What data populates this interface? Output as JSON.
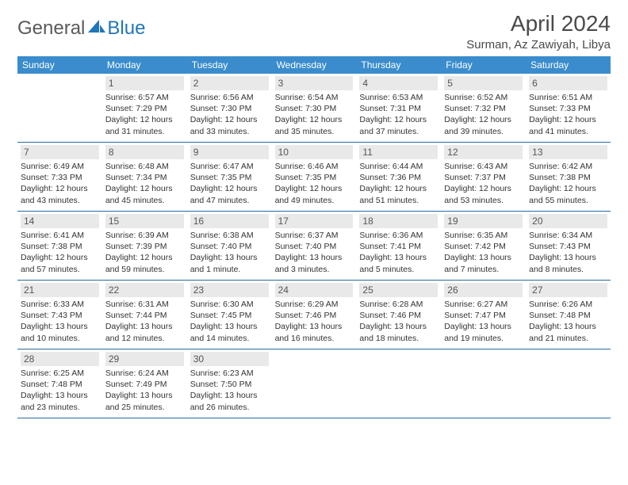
{
  "logo": {
    "text_general": "General",
    "text_blue": "Blue"
  },
  "title": "April 2024",
  "location": "Surman, Az Zawiyah, Libya",
  "colors": {
    "header_bg": "#3a8ccc",
    "daynum_bg": "#e9e9e9",
    "week_border": "#2a6aa0",
    "logo_blue": "#2176b8",
    "text": "#333333"
  },
  "day_names": [
    "Sunday",
    "Monday",
    "Tuesday",
    "Wednesday",
    "Thursday",
    "Friday",
    "Saturday"
  ],
  "weeks": [
    [
      {
        "day": "",
        "sunrise": "",
        "sunset": "",
        "daylight": ""
      },
      {
        "day": "1",
        "sunrise": "Sunrise: 6:57 AM",
        "sunset": "Sunset: 7:29 PM",
        "daylight": "Daylight: 12 hours and 31 minutes."
      },
      {
        "day": "2",
        "sunrise": "Sunrise: 6:56 AM",
        "sunset": "Sunset: 7:30 PM",
        "daylight": "Daylight: 12 hours and 33 minutes."
      },
      {
        "day": "3",
        "sunrise": "Sunrise: 6:54 AM",
        "sunset": "Sunset: 7:30 PM",
        "daylight": "Daylight: 12 hours and 35 minutes."
      },
      {
        "day": "4",
        "sunrise": "Sunrise: 6:53 AM",
        "sunset": "Sunset: 7:31 PM",
        "daylight": "Daylight: 12 hours and 37 minutes."
      },
      {
        "day": "5",
        "sunrise": "Sunrise: 6:52 AM",
        "sunset": "Sunset: 7:32 PM",
        "daylight": "Daylight: 12 hours and 39 minutes."
      },
      {
        "day": "6",
        "sunrise": "Sunrise: 6:51 AM",
        "sunset": "Sunset: 7:33 PM",
        "daylight": "Daylight: 12 hours and 41 minutes."
      }
    ],
    [
      {
        "day": "7",
        "sunrise": "Sunrise: 6:49 AM",
        "sunset": "Sunset: 7:33 PM",
        "daylight": "Daylight: 12 hours and 43 minutes."
      },
      {
        "day": "8",
        "sunrise": "Sunrise: 6:48 AM",
        "sunset": "Sunset: 7:34 PM",
        "daylight": "Daylight: 12 hours and 45 minutes."
      },
      {
        "day": "9",
        "sunrise": "Sunrise: 6:47 AM",
        "sunset": "Sunset: 7:35 PM",
        "daylight": "Daylight: 12 hours and 47 minutes."
      },
      {
        "day": "10",
        "sunrise": "Sunrise: 6:46 AM",
        "sunset": "Sunset: 7:35 PM",
        "daylight": "Daylight: 12 hours and 49 minutes."
      },
      {
        "day": "11",
        "sunrise": "Sunrise: 6:44 AM",
        "sunset": "Sunset: 7:36 PM",
        "daylight": "Daylight: 12 hours and 51 minutes."
      },
      {
        "day": "12",
        "sunrise": "Sunrise: 6:43 AM",
        "sunset": "Sunset: 7:37 PM",
        "daylight": "Daylight: 12 hours and 53 minutes."
      },
      {
        "day": "13",
        "sunrise": "Sunrise: 6:42 AM",
        "sunset": "Sunset: 7:38 PM",
        "daylight": "Daylight: 12 hours and 55 minutes."
      }
    ],
    [
      {
        "day": "14",
        "sunrise": "Sunrise: 6:41 AM",
        "sunset": "Sunset: 7:38 PM",
        "daylight": "Daylight: 12 hours and 57 minutes."
      },
      {
        "day": "15",
        "sunrise": "Sunrise: 6:39 AM",
        "sunset": "Sunset: 7:39 PM",
        "daylight": "Daylight: 12 hours and 59 minutes."
      },
      {
        "day": "16",
        "sunrise": "Sunrise: 6:38 AM",
        "sunset": "Sunset: 7:40 PM",
        "daylight": "Daylight: 13 hours and 1 minute."
      },
      {
        "day": "17",
        "sunrise": "Sunrise: 6:37 AM",
        "sunset": "Sunset: 7:40 PM",
        "daylight": "Daylight: 13 hours and 3 minutes."
      },
      {
        "day": "18",
        "sunrise": "Sunrise: 6:36 AM",
        "sunset": "Sunset: 7:41 PM",
        "daylight": "Daylight: 13 hours and 5 minutes."
      },
      {
        "day": "19",
        "sunrise": "Sunrise: 6:35 AM",
        "sunset": "Sunset: 7:42 PM",
        "daylight": "Daylight: 13 hours and 7 minutes."
      },
      {
        "day": "20",
        "sunrise": "Sunrise: 6:34 AM",
        "sunset": "Sunset: 7:43 PM",
        "daylight": "Daylight: 13 hours and 8 minutes."
      }
    ],
    [
      {
        "day": "21",
        "sunrise": "Sunrise: 6:33 AM",
        "sunset": "Sunset: 7:43 PM",
        "daylight": "Daylight: 13 hours and 10 minutes."
      },
      {
        "day": "22",
        "sunrise": "Sunrise: 6:31 AM",
        "sunset": "Sunset: 7:44 PM",
        "daylight": "Daylight: 13 hours and 12 minutes."
      },
      {
        "day": "23",
        "sunrise": "Sunrise: 6:30 AM",
        "sunset": "Sunset: 7:45 PM",
        "daylight": "Daylight: 13 hours and 14 minutes."
      },
      {
        "day": "24",
        "sunrise": "Sunrise: 6:29 AM",
        "sunset": "Sunset: 7:46 PM",
        "daylight": "Daylight: 13 hours and 16 minutes."
      },
      {
        "day": "25",
        "sunrise": "Sunrise: 6:28 AM",
        "sunset": "Sunset: 7:46 PM",
        "daylight": "Daylight: 13 hours and 18 minutes."
      },
      {
        "day": "26",
        "sunrise": "Sunrise: 6:27 AM",
        "sunset": "Sunset: 7:47 PM",
        "daylight": "Daylight: 13 hours and 19 minutes."
      },
      {
        "day": "27",
        "sunrise": "Sunrise: 6:26 AM",
        "sunset": "Sunset: 7:48 PM",
        "daylight": "Daylight: 13 hours and 21 minutes."
      }
    ],
    [
      {
        "day": "28",
        "sunrise": "Sunrise: 6:25 AM",
        "sunset": "Sunset: 7:48 PM",
        "daylight": "Daylight: 13 hours and 23 minutes."
      },
      {
        "day": "29",
        "sunrise": "Sunrise: 6:24 AM",
        "sunset": "Sunset: 7:49 PM",
        "daylight": "Daylight: 13 hours and 25 minutes."
      },
      {
        "day": "30",
        "sunrise": "Sunrise: 6:23 AM",
        "sunset": "Sunset: 7:50 PM",
        "daylight": "Daylight: 13 hours and 26 minutes."
      },
      {
        "day": "",
        "sunrise": "",
        "sunset": "",
        "daylight": ""
      },
      {
        "day": "",
        "sunrise": "",
        "sunset": "",
        "daylight": ""
      },
      {
        "day": "",
        "sunrise": "",
        "sunset": "",
        "daylight": ""
      },
      {
        "day": "",
        "sunrise": "",
        "sunset": "",
        "daylight": ""
      }
    ]
  ]
}
